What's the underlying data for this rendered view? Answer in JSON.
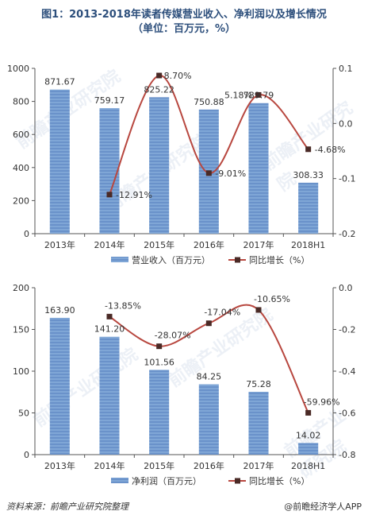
{
  "title": {
    "line1": "图1：2013-2018年读者传媒营业收入、净利润以及增长情况",
    "line2": "（单位：百万元，%）"
  },
  "footer": {
    "source": "资料来源：前瞻产业研究院整理",
    "brand": "@前瞻经济学人APP"
  },
  "watermark": "前瞻产业研究院",
  "colors": {
    "bar": "#7fa6d6",
    "bar_stripe": "#5b86c2",
    "line": "#b8473f",
    "marker": "#4a2a26",
    "axis": "#555555",
    "title": "#2d4f7c"
  },
  "chart_data": [
    {
      "type": "bar+line",
      "categories": [
        "2013年",
        "2014年",
        "2015年",
        "2016年",
        "2017年",
        "2018H1"
      ],
      "series": [
        {
          "name": "营业收入（百万元）",
          "kind": "bar",
          "axis": "left",
          "values": [
            871.67,
            759.17,
            825.22,
            750.88,
            789.79,
            308.33
          ],
          "labels": [
            "871.67",
            "759.17",
            "825.22",
            "750.88",
            "789.79",
            "308.33"
          ]
        },
        {
          "name": "同比增长（%）",
          "kind": "line",
          "axis": "right",
          "values": [
            null,
            -0.1291,
            0.087,
            -0.0901,
            0.0518,
            -0.0468
          ],
          "labels": [
            null,
            "-12.91%",
            "8.70%",
            "-9.01%",
            "5.18%",
            "-4.68%"
          ]
        }
      ],
      "y_left": {
        "min": 0,
        "max": 1000,
        "ticks": [
          0,
          200,
          400,
          600,
          800,
          1000
        ],
        "tick_labels": [
          "0",
          "200",
          "400",
          "600",
          "800",
          "1000"
        ]
      },
      "y_right": {
        "min": -0.2,
        "max": 0.1,
        "ticks": [
          -0.2,
          -0.1,
          0,
          0.1
        ],
        "tick_labels": [
          "-0.2",
          "-0.1",
          "0.0",
          "0.1"
        ]
      },
      "legend": [
        "营业收入（百万元）",
        "同比增长（%）"
      ],
      "legend_position": "bottom",
      "grid": false
    },
    {
      "type": "bar+line",
      "categories": [
        "2013年",
        "2014年",
        "2015年",
        "2016年",
        "2017年",
        "2018H1"
      ],
      "series": [
        {
          "name": "净利润（百万元）",
          "kind": "bar",
          "axis": "left",
          "values": [
            163.9,
            141.2,
            101.56,
            84.25,
            75.28,
            14.02
          ],
          "labels": [
            "163.90",
            "141.20",
            "101.56",
            "84.25",
            "75.28",
            "14.02"
          ]
        },
        {
          "name": "同比增长（%）",
          "kind": "line",
          "axis": "right",
          "values": [
            null,
            -0.1385,
            -0.2807,
            -0.1704,
            -0.1065,
            -0.5996
          ],
          "labels": [
            null,
            "-13.85%",
            "-28.07%",
            "-17.04%",
            "-10.65%",
            "-59.96%"
          ]
        }
      ],
      "y_left": {
        "min": 0,
        "max": 200,
        "ticks": [
          0,
          50,
          100,
          150,
          200
        ],
        "tick_labels": [
          "0",
          "50",
          "100",
          "150",
          "200"
        ]
      },
      "y_right": {
        "min": -0.8,
        "max": 0,
        "ticks": [
          -0.8,
          -0.6,
          -0.4,
          -0.2,
          0
        ],
        "tick_labels": [
          "-0.8",
          "-0.6",
          "-0.4",
          "-0.2",
          "0.0"
        ]
      },
      "legend": [
        "净利润（百万元）",
        "同比增长（%）"
      ],
      "legend_position": "bottom",
      "grid": false
    }
  ]
}
